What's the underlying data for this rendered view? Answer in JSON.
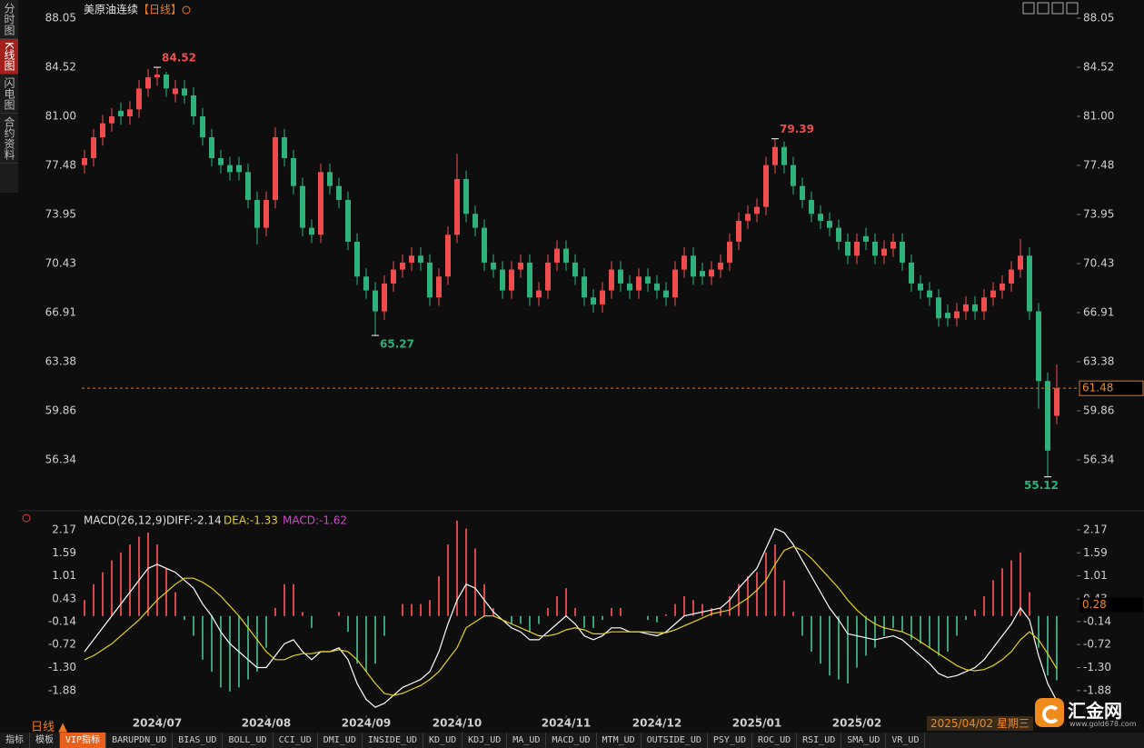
{
  "sidebar": [
    "分时图",
    "K线图",
    "闪电图",
    "合约资料"
  ],
  "chart_data": {
    "type": "candlestick",
    "title": "美原油连续",
    "period": "【日线】",
    "categories": [
      null,
      null,
      null,
      null,
      null,
      null,
      null,
      null,
      "2024/07",
      null,
      null,
      null,
      null,
      null,
      null,
      null,
      null,
      null,
      null,
      null,
      "2024/08",
      null,
      null,
      null,
      null,
      null,
      null,
      null,
      null,
      null,
      null,
      "2024/09",
      null,
      null,
      null,
      null,
      null,
      null,
      null,
      null,
      null,
      "2024/10",
      null,
      null,
      null,
      null,
      null,
      null,
      null,
      null,
      null,
      null,
      null,
      "2024/11",
      null,
      null,
      null,
      null,
      null,
      null,
      null,
      null,
      null,
      "2024/12",
      null,
      null,
      null,
      null,
      null,
      null,
      null,
      null,
      null,
      null,
      "2025/01",
      null,
      null,
      null,
      null,
      null,
      null,
      null,
      null,
      null,
      null,
      "2025/02",
      null,
      null,
      null,
      null,
      null,
      null,
      null,
      null,
      null,
      null,
      null,
      null,
      null,
      null,
      null,
      null,
      null,
      null,
      null,
      null,
      null,
      null
    ],
    "open": [
      77.5,
      78,
      79.5,
      80.5,
      81.4,
      81,
      81.5,
      83,
      83.8,
      84,
      82.6,
      83,
      82.5,
      81,
      79.5,
      78,
      77.5,
      77.5,
      77,
      75,
      73,
      75,
      79.5,
      78,
      76,
      73,
      72.5,
      77,
      76,
      75,
      72,
      69.5,
      68.5,
      67,
      69,
      70,
      70.5,
      71,
      70.5,
      68,
      69.5,
      72.5,
      76.5,
      74,
      73,
      70.5,
      70,
      68.5,
      70,
      70.5,
      68,
      68.5,
      70.5,
      71.5,
      70.5,
      69.5,
      68,
      67.5,
      68.5,
      70,
      69,
      68.5,
      69.5,
      69,
      68.5,
      68,
      70,
      71,
      69.9,
      69.5,
      70,
      70.5,
      72,
      73.5,
      74,
      74.5,
      77.5,
      78.8,
      77.5,
      76,
      75,
      74,
      73.5,
      73,
      72,
      71,
      72.4,
      72,
      71,
      71.5,
      72,
      70.5,
      69,
      68.5,
      68,
      66.9,
      66.5,
      67,
      67.5,
      67,
      68,
      68.5,
      69,
      70,
      71,
      67,
      62,
      59.5
    ],
    "high": [
      78.6,
      80.1,
      81.1,
      81.6,
      82.0,
      82.1,
      83.6,
      84.4,
      84.52,
      84.2,
      83.6,
      83.6,
      83.1,
      81.6,
      80.1,
      78.6,
      78.1,
      78.1,
      77.6,
      75.6,
      75.6,
      80.2,
      80.1,
      78.6,
      76.6,
      73.6,
      77.6,
      77.6,
      76.6,
      75.6,
      72.6,
      70.1,
      69.1,
      69.6,
      70.6,
      71.1,
      71.6,
      71.6,
      71.1,
      70.1,
      73.1,
      78.3,
      77.1,
      74.6,
      73.6,
      71.1,
      70.6,
      70.6,
      71.1,
      71.1,
      69.1,
      71.1,
      72.1,
      72.1,
      71.1,
      70.1,
      68.6,
      69.1,
      70.6,
      70.6,
      69.6,
      70.1,
      70.1,
      69.6,
      69.1,
      70.6,
      71.6,
      71.6,
      70.5,
      70.6,
      71.1,
      72.6,
      74.1,
      74.6,
      75.1,
      78.1,
      79.39,
      79.2,
      78.1,
      76.6,
      75.6,
      74.6,
      74.1,
      73.6,
      72.6,
      72.6,
      73.0,
      72.6,
      72.1,
      72.6,
      72.6,
      71.1,
      69.6,
      69.1,
      68.6,
      67.5,
      67.6,
      68.1,
      68.1,
      68.6,
      69.1,
      69.6,
      70.6,
      72.2,
      71.6,
      67.6,
      62.6,
      63.2
    ],
    "low": [
      76.9,
      77.4,
      78.9,
      79.9,
      80.4,
      80.4,
      80.9,
      82.4,
      83.2,
      82.4,
      82.0,
      81.9,
      80.4,
      78.9,
      77.4,
      76.9,
      76.4,
      76.4,
      74.4,
      71.8,
      72.4,
      74.4,
      77.4,
      75.4,
      72.4,
      71.9,
      71.9,
      75.4,
      74.4,
      71.4,
      68.9,
      67.9,
      65.27,
      66.4,
      68.4,
      69.4,
      69.9,
      69.9,
      67.4,
      67.4,
      68.9,
      71.9,
      73.4,
      72.4,
      69.9,
      69.4,
      67.9,
      67.9,
      69.4,
      67.4,
      67.4,
      67.9,
      69.9,
      69.9,
      68.9,
      67.4,
      66.9,
      66.9,
      67.9,
      68.4,
      67.9,
      67.9,
      68.4,
      67.9,
      67.4,
      67.4,
      69.4,
      68.9,
      68.9,
      68.9,
      69.4,
      69.9,
      71.4,
      72.9,
      73.4,
      73.9,
      76.9,
      76.9,
      75.4,
      74.4,
      73.4,
      72.9,
      72.4,
      71.4,
      70.4,
      70.4,
      71.4,
      70.4,
      70.4,
      70.9,
      69.9,
      68.4,
      67.9,
      67.4,
      65.9,
      65.9,
      65.9,
      66.4,
      66.4,
      66.4,
      67.4,
      67.9,
      68.4,
      69.4,
      66.4,
      60,
      55.12,
      58.9
    ],
    "close": [
      78,
      79.5,
      80.5,
      81,
      81,
      81.5,
      83,
      83.8,
      84,
      83,
      83,
      82.5,
      81,
      79.5,
      78,
      77.5,
      77,
      77,
      75,
      73,
      75,
      79.5,
      78,
      76,
      73,
      72.5,
      77,
      76,
      75,
      72,
      69.5,
      68.5,
      67,
      69,
      70,
      70.5,
      71,
      70.5,
      68,
      69.5,
      72.5,
      76.5,
      74,
      73,
      70.5,
      70,
      68.5,
      70,
      70.5,
      68,
      68.5,
      70.5,
      71.5,
      70.5,
      69.5,
      68,
      67.5,
      68.5,
      70,
      69,
      68.5,
      69.5,
      69,
      68.5,
      68,
      70,
      71,
      69.5,
      69.5,
      70,
      70.5,
      72,
      73.5,
      74,
      74.5,
      77.5,
      78.8,
      77.5,
      76,
      75,
      74,
      73.5,
      73,
      72,
      71,
      72,
      72,
      71,
      71.5,
      72,
      70.5,
      69,
      68.5,
      68,
      66.5,
      66.5,
      67,
      67.5,
      67,
      68,
      68.5,
      69,
      70,
      71,
      67,
      62,
      57,
      61.48
    ],
    "up_color": "#ef4d4d",
    "down_color": "#2fb17c",
    "ylim": [
      53.14,
      88.83
    ],
    "yticks": [
      88.05,
      84.52,
      {
        "value": 81,
        "label": "81.00"
      },
      77.48,
      73.95,
      70.43,
      66.91,
      63.38,
      59.86,
      56.34
    ],
    "last_price_line": true,
    "indicator": {
      "type": "macd",
      "name": "MACD(26,12,9)",
      "ylim": [
        -2.57,
        2.58
      ],
      "yticks": [
        2.17,
        1.59,
        1.01,
        0.43,
        -0.14,
        -0.72,
        {
          "value": -1.3,
          "label": "-1.30"
        },
        -1.88
      ],
      "cursor_value": 0.28,
      "series": [
        {
          "name": "DIFF",
          "legend_label": "DIFF:-2.14",
          "color": "#ffffff",
          "values": [
            -0.9,
            -0.6,
            -0.3,
            0,
            0.3,
            0.6,
            0.9,
            1.2,
            1.3,
            1.2,
            1.1,
            0.9,
            0.7,
            0.3,
            0,
            -0.4,
            -0.7,
            -0.9,
            -1.1,
            -1.3,
            -1.3,
            -1.0,
            -0.7,
            -0.6,
            -0.9,
            -1.1,
            -0.9,
            -0.9,
            -0.8,
            -1.1,
            -1.7,
            -2.1,
            -2.3,
            -2.2,
            -2.0,
            -1.8,
            -1.7,
            -1.6,
            -1.4,
            -0.9,
            -0.2,
            0.4,
            0.8,
            0.7,
            0.4,
            0.1,
            -0.1,
            -0.3,
            -0.4,
            -0.6,
            -0.6,
            -0.4,
            -0.2,
            0,
            -0.2,
            -0.5,
            -0.6,
            -0.5,
            -0.3,
            -0.3,
            -0.4,
            -0.4,
            -0.45,
            -0.5,
            -0.4,
            -0.2,
            0,
            0.05,
            0.1,
            0.15,
            0.2,
            0.4,
            0.7,
            0.95,
            1.2,
            1.7,
            2.2,
            2.1,
            1.8,
            1.4,
            1.0,
            0.6,
            0.2,
            -0.1,
            -0.45,
            -0.5,
            -0.55,
            -0.6,
            -0.55,
            -0.5,
            -0.6,
            -0.8,
            -1.0,
            -1.2,
            -1.45,
            -1.55,
            -1.5,
            -1.4,
            -1.3,
            -1.1,
            -0.8,
            -0.5,
            -0.2,
            0.2,
            -0.1,
            -1.0,
            -1.7,
            -2.14
          ]
        },
        {
          "name": "DEA",
          "legend_label": "DEA:-1.33",
          "color": "#e3d21a",
          "values": [
            -1.1,
            -1.0,
            -0.85,
            -0.7,
            -0.5,
            -0.3,
            -0.1,
            0.15,
            0.4,
            0.6,
            0.8,
            0.95,
            0.95,
            0.85,
            0.7,
            0.5,
            0.25,
            0,
            -0.3,
            -0.6,
            -0.9,
            -1.1,
            -1.1,
            -1.0,
            -0.95,
            -0.95,
            -0.9,
            -0.9,
            -0.85,
            -0.9,
            -1.1,
            -1.4,
            -1.7,
            -1.95,
            -2.0,
            -1.95,
            -1.85,
            -1.75,
            -1.6,
            -1.4,
            -1.1,
            -0.8,
            -0.3,
            -0.15,
            0,
            0,
            -0.1,
            -0.2,
            -0.3,
            -0.4,
            -0.5,
            -0.5,
            -0.45,
            -0.35,
            -0.3,
            -0.35,
            -0.45,
            -0.45,
            -0.4,
            -0.4,
            -0.4,
            -0.4,
            -0.4,
            -0.42,
            -0.42,
            -0.35,
            -0.25,
            -0.15,
            -0.05,
            0.05,
            0.1,
            0.15,
            0.3,
            0.45,
            0.65,
            0.9,
            1.3,
            1.65,
            1.75,
            1.65,
            1.45,
            1.2,
            0.95,
            0.7,
            0.4,
            0.15,
            -0.05,
            -0.2,
            -0.3,
            -0.35,
            -0.4,
            -0.5,
            -0.65,
            -0.8,
            -0.95,
            -1.1,
            -1.25,
            -1.35,
            -1.38,
            -1.35,
            -1.25,
            -1.1,
            -0.9,
            -0.6,
            -0.4,
            -0.6,
            -0.95,
            -1.33
          ]
        },
        {
          "name": "MACD",
          "legend_label": "MACD:-1.62",
          "type": "histogram",
          "color": "#d046d0",
          "up_color": "#d9474d",
          "down_color": "#3a9e78",
          "values": [
            0.4,
            0.8,
            1.1,
            1.4,
            1.6,
            1.8,
            2.0,
            2.1,
            1.8,
            1.2,
            0.6,
            -0.1,
            -0.5,
            -1.1,
            -1.4,
            -1.8,
            -1.9,
            -1.8,
            -1.6,
            -1.4,
            -0.8,
            0.2,
            0.8,
            0.8,
            0.1,
            -0.3,
            0,
            0,
            0.1,
            -0.4,
            -1.2,
            -1.4,
            -1.2,
            -0.5,
            0,
            0.3,
            0.3,
            0.3,
            0.4,
            1.0,
            1.8,
            2.4,
            2.2,
            1.7,
            0.8,
            0.2,
            0,
            -0.2,
            -0.2,
            -0.4,
            -0.2,
            0.2,
            0.5,
            0.7,
            0.2,
            -0.3,
            -0.3,
            -0.1,
            0.2,
            0.2,
            0,
            0,
            -0.1,
            -0.16,
            0.04,
            0.3,
            0.5,
            0.4,
            0.3,
            0.2,
            0.2,
            0.5,
            0.8,
            1.0,
            1.1,
            1.6,
            1.8,
            0.9,
            0.1,
            -0.5,
            -0.9,
            -1.2,
            -1.5,
            -1.6,
            -1.7,
            -1.3,
            -1.0,
            -0.8,
            -0.5,
            -0.3,
            -0.4,
            -0.6,
            -0.7,
            -0.8,
            -1.0,
            -0.9,
            -0.5,
            -0.1,
            0.16,
            0.5,
            0.9,
            1.2,
            1.4,
            1.6,
            0.6,
            -0.8,
            -1.5,
            -1.62
          ]
        }
      ]
    }
  },
  "cursor_date": "2025/04/02 星期三",
  "footer": {
    "period": "日线 ▲",
    "tabs": [
      "指标",
      "模板",
      "VIP指标",
      "BARUPDN_UD",
      "BIAS_UD",
      "BOLL_UD",
      "CCI_UD",
      "DMI_UD",
      "INSIDE_UD",
      "KD_UD",
      "KDJ_UD",
      "MA_UD",
      "MACD_UD",
      "MTM_UD",
      "OUTSIDE_UD",
      "PSY_UD",
      "ROC_UD",
      "RSI_UD",
      "SMA_UD",
      "VR_UD"
    ]
  },
  "logo": {
    "name": "汇金网",
    "url": "www.gold678.com"
  }
}
